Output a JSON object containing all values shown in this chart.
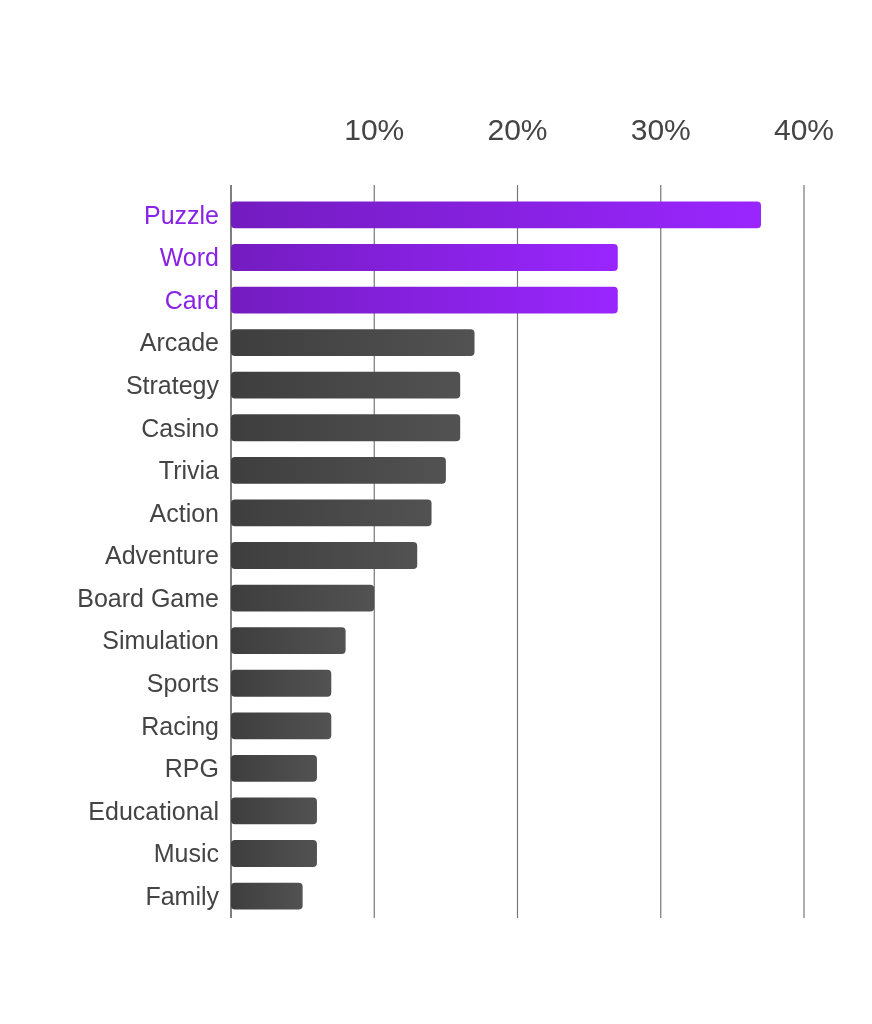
{
  "chart_data": {
    "type": "bar",
    "orientation": "horizontal",
    "categories": [
      "Puzzle",
      "Word",
      "Card",
      "Arcade",
      "Strategy",
      "Casino",
      "Trivia",
      "Action",
      "Adventure",
      "Board Game",
      "Simulation",
      "Sports",
      "Racing",
      "RPG",
      "Educational",
      "Music",
      "Family"
    ],
    "values": [
      37,
      27,
      27,
      17,
      16,
      16,
      15,
      14,
      13,
      10,
      8,
      7,
      7,
      6,
      6,
      6,
      5
    ],
    "colors": [
      "#8a22e6",
      "#8a22e6",
      "#8a22e6",
      "#4a4a4a",
      "#4a4a4a",
      "#4a4a4a",
      "#4a4a4a",
      "#4a4a4a",
      "#4a4a4a",
      "#4a4a4a",
      "#4a4a4a",
      "#4a4a4a",
      "#4a4a4a",
      "#4a4a4a",
      "#4a4a4a",
      "#4a4a4a",
      "#4a4a4a"
    ],
    "xlim": [
      0,
      40
    ],
    "xticks": [
      {
        "value": 10,
        "label": "10%"
      },
      {
        "value": 20,
        "label": "20%"
      },
      {
        "value": 30,
        "label": "30%"
      },
      {
        "value": 40,
        "label": "40%"
      }
    ],
    "grid": "x"
  }
}
